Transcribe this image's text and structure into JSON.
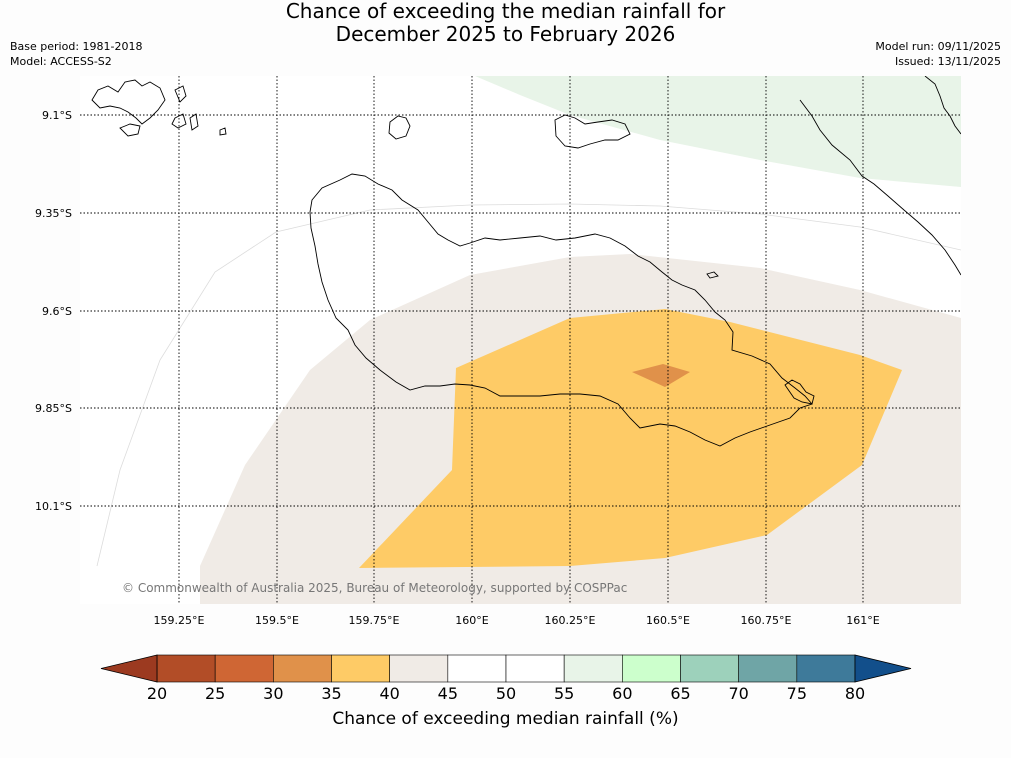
{
  "title": {
    "line1": "Chance of exceeding the median rainfall for",
    "line2": "December 2025 to February 2026"
  },
  "meta_left": {
    "base_period": "Base period: 1981-2018",
    "model": "Model: ACCESS-S2"
  },
  "meta_right": {
    "model_run": "Model run: 09/11/2025",
    "issued": "Issued: 13/11/2025"
  },
  "map": {
    "lat_labels": [
      "9.1°S",
      "9.35°S",
      "9.6°S",
      "9.85°S",
      "10.1°S"
    ],
    "lon_labels": [
      "159.25°E",
      "159.5°E",
      "159.75°E",
      "160°E",
      "160.25°E",
      "160.5°E",
      "160.75°E",
      "161°E"
    ],
    "copyright": "© Commonwealth of Australia 2025, Bureau of Meteorology, supported by COSPPac",
    "colors": {
      "c30_35": "#e0914a",
      "c35_40": "#fecb66",
      "c40_45": "#f0ebe6",
      "c55_60": "#e8f4e8",
      "coast": "#000000"
    }
  },
  "colorbar": {
    "ticks": [
      "20",
      "25",
      "30",
      "35",
      "40",
      "45",
      "50",
      "55",
      "60",
      "65",
      "70",
      "75",
      "80"
    ],
    "colors": [
      "#b24d27",
      "#cf6634",
      "#e0914a",
      "#fecb66",
      "#f0ebe6",
      "#ffffff",
      "#ffffff",
      "#e8f4e8",
      "#ccffcc",
      "#9dd1bb",
      "#6fa5a6",
      "#3e7a9a"
    ],
    "under_color": "#9c3a20",
    "over_color": "#124f8b",
    "label": "Chance of exceeding median rainfall (%)"
  }
}
